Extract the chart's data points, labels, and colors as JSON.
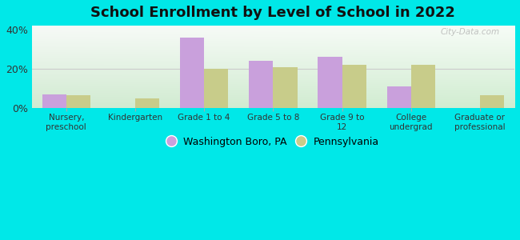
{
  "title": "School Enrollment by Level of School in 2022",
  "categories": [
    "Nursery,\npreschool",
    "Kindergarten",
    "Grade 1 to 4",
    "Grade 5 to 8",
    "Grade 9 to\n12",
    "College\nundergrad",
    "Graduate or\nprofessional"
  ],
  "washington": [
    7,
    0,
    36,
    24,
    26,
    11,
    0
  ],
  "pennsylvania": [
    6.5,
    5,
    20,
    21,
    22,
    22,
    6.5
  ],
  "washington_color": "#c9a0dc",
  "pennsylvania_color": "#c8cc8a",
  "bar_width": 0.35,
  "ylim": [
    0,
    42
  ],
  "yticks": [
    0,
    20,
    40
  ],
  "ytick_labels": [
    "0%",
    "20%",
    "40%"
  ],
  "background_outer": "#00e8e8",
  "background_inner_topleft": "#d8eedb",
  "background_inner_topright": "#f8f8f8",
  "background_inner_bottom": "#c8e8c8",
  "legend_labels": [
    "Washington Boro, PA",
    "Pennsylvania"
  ],
  "watermark": "City-Data.com",
  "grid_color": "#cccccc"
}
